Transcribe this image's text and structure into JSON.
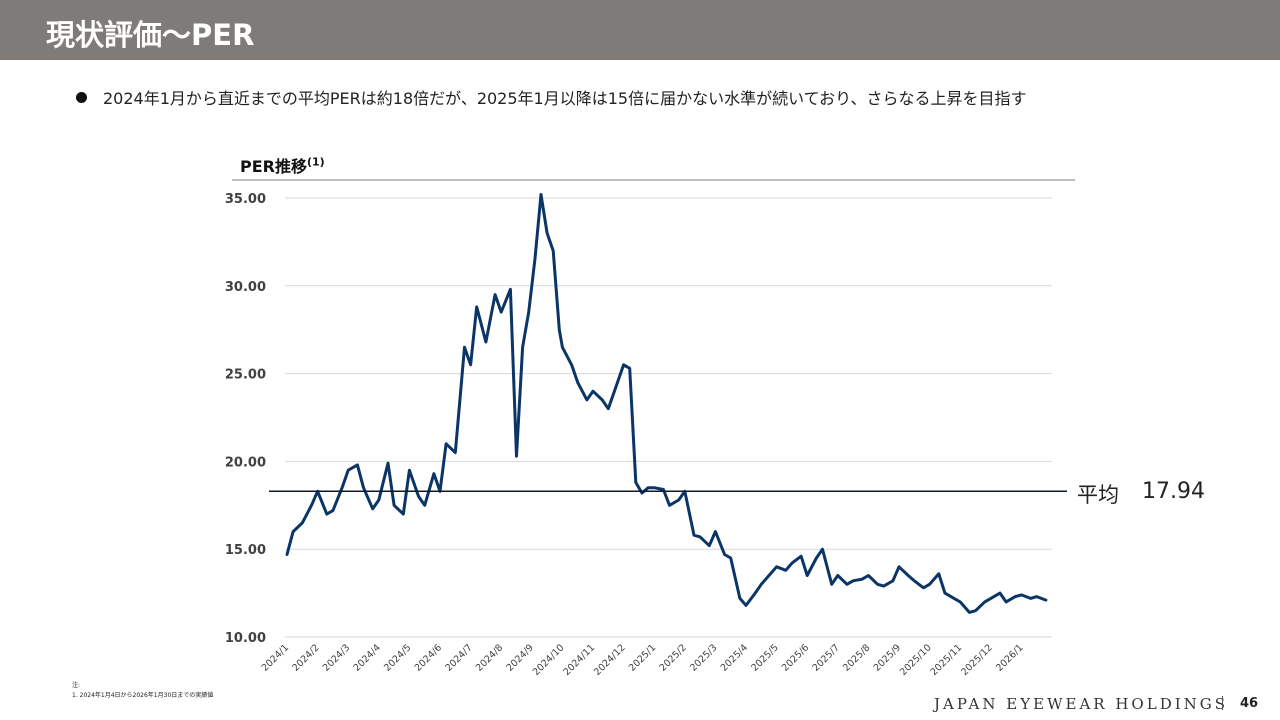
{
  "header": {
    "title": "現状評価〜PER"
  },
  "bullet": "2024年1月から直近までの平均PERは約18倍だが、2025年1月以降は15倍に届かない水準が続いており、さらなる上昇を目指す",
  "chart_title": {
    "text": "PER推移",
    "sup": "(1)"
  },
  "average": {
    "label": "平均",
    "value": "17.94",
    "y": 18.3
  },
  "footnote": {
    "head": "注:",
    "text": "1. 2024年1月4日から2026年1月30日までの実績値"
  },
  "footer": {
    "brand": "JAPAN EYEWEAR HOLDINGS",
    "page": "46"
  },
  "colors": {
    "line": "#0b3566",
    "grid": "#d9d9d9",
    "header": "#7f7b78",
    "avg": "#0e1a2b"
  },
  "chart_data": {
    "type": "line",
    "title": "PER推移",
    "xlabel": "",
    "ylabel": "",
    "ylim": [
      10,
      35
    ],
    "yticks": [
      "10.00",
      "15.00",
      "20.00",
      "25.00",
      "30.00",
      "35.00"
    ],
    "xticks": [
      "2024/1",
      "2024/2",
      "2024/3",
      "2024/4",
      "2024/5",
      "2024/6",
      "2024/7",
      "2024/8",
      "2024/9",
      "2024/10",
      "2024/11",
      "2024/12",
      "2025/1",
      "2025/2",
      "2025/3",
      "2025/4",
      "2025/5",
      "2025/6",
      "2025/7",
      "2025/8",
      "2025/9",
      "2025/10",
      "2025/11",
      "2025/12",
      "2026/1"
    ],
    "grid": true,
    "series": [
      {
        "x": [
          0,
          0.2,
          0.5,
          0.8,
          1,
          1.3,
          1.5,
          1.8,
          2,
          2.3,
          2.5,
          2.8,
          3,
          3.3,
          3.5,
          3.8,
          4,
          4.3,
          4.5,
          4.8,
          5,
          5.2,
          5.5,
          5.8,
          6,
          6.2,
          6.5,
          6.8,
          7,
          7.3,
          7.5,
          7.7,
          7.9,
          8.1,
          8.3,
          8.5,
          8.7,
          8.9,
          9,
          9.3,
          9.5,
          9.8,
          10,
          10.3,
          10.5,
          10.8,
          11,
          11.2,
          11.4,
          11.6,
          11.8,
          12,
          12.3,
          12.5,
          12.8,
          13,
          13.3,
          13.5,
          13.8,
          14,
          14.3,
          14.5,
          14.8,
          15,
          15.3,
          15.5,
          15.8,
          16,
          16.3,
          16.5,
          16.8,
          17,
          17.3,
          17.5,
          17.8,
          18,
          18.3,
          18.5,
          18.8,
          19,
          19.3,
          19.5,
          19.8,
          20,
          20.3,
          20.5,
          20.8,
          21,
          21.3,
          21.5,
          21.8,
          22,
          22.3,
          22.5,
          22.8,
          23,
          23.3,
          23.5,
          23.8,
          24,
          24.3,
          24.5,
          24.8
        ],
        "y": [
          14.7,
          16.0,
          16.5,
          17.5,
          18.3,
          17.0,
          17.2,
          18.5,
          19.5,
          19.8,
          18.5,
          17.3,
          17.8,
          19.9,
          17.5,
          17.0,
          19.5,
          18.0,
          17.5,
          19.3,
          18.3,
          21.0,
          20.5,
          26.5,
          25.5,
          28.8,
          26.8,
          29.5,
          28.5,
          29.8,
          20.3,
          26.5,
          28.5,
          31.5,
          35.2,
          33.0,
          32.0,
          27.5,
          26.5,
          25.5,
          24.5,
          23.5,
          24.0,
          23.5,
          23.0,
          24.5,
          25.5,
          25.3,
          18.8,
          18.2,
          18.5,
          18.5,
          18.4,
          17.5,
          17.8,
          18.3,
          15.8,
          15.7,
          15.2,
          16.0,
          14.7,
          14.5,
          12.2,
          11.8,
          12.5,
          13.0,
          13.6,
          14.0,
          13.8,
          14.2,
          14.6,
          13.5,
          14.5,
          15.0,
          13.0,
          13.5,
          13.0,
          13.2,
          13.3,
          13.5,
          13.0,
          12.9,
          13.2,
          14.0,
          13.5,
          13.2,
          12.8,
          13.0,
          13.6,
          12.5,
          12.2,
          12.0,
          11.4,
          11.5,
          12.0,
          12.2,
          12.5,
          12.0,
          12.3,
          12.4,
          12.2,
          12.3,
          12.1
        ]
      }
    ]
  }
}
